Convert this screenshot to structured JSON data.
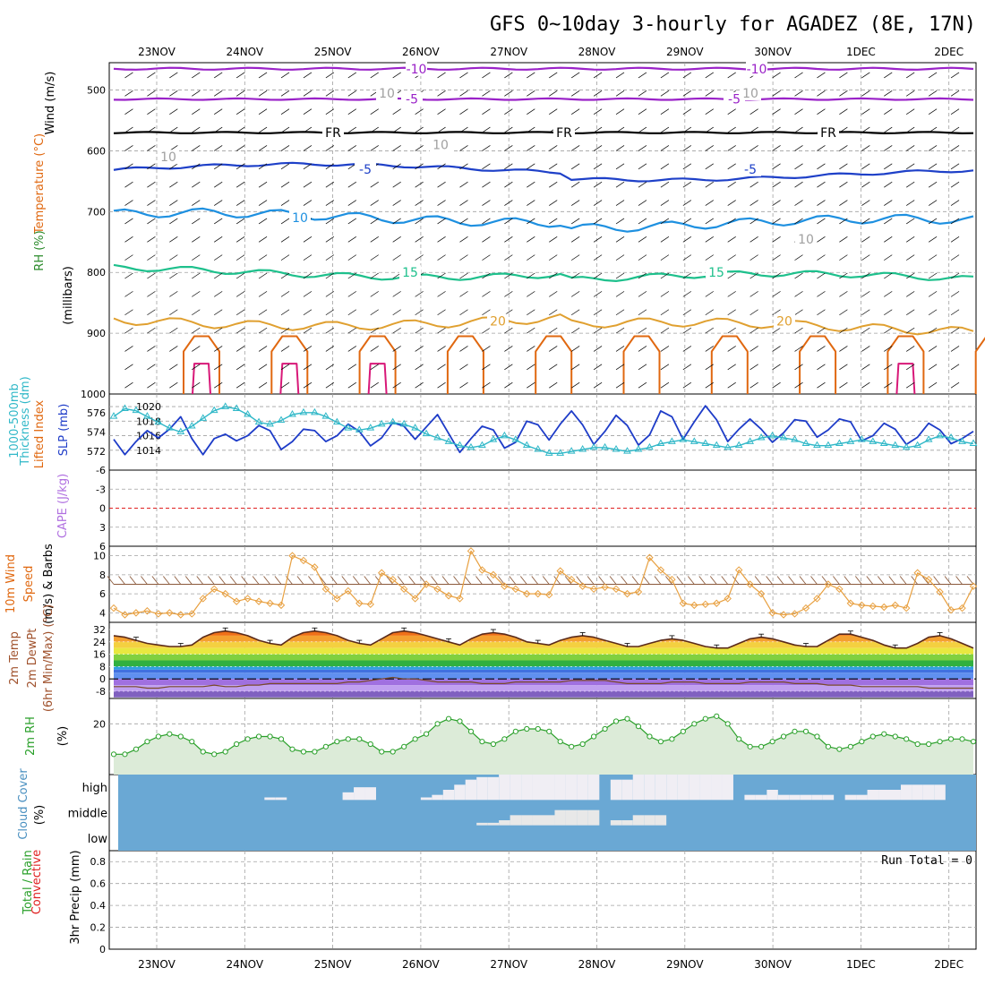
{
  "title": "GFS 0~10day 3-hourly for AGADEZ (8E, 17N)",
  "dates": [
    "23NOV",
    "24NOV",
    "25NOV",
    "26NOV",
    "27NOV",
    "28NOV",
    "29NOV",
    "30NOV",
    "1DEC",
    "2DEC"
  ],
  "colors": {
    "grid": "#a0a0a0",
    "purple": "#9a22c8",
    "black": "#000000",
    "blue": "#1e40c8",
    "lightblue": "#1e90e0",
    "teal": "#1ec08c",
    "gold": "#e0a030",
    "orange": "#e06810",
    "magenta": "#d81878",
    "slp": "#1e3cc8",
    "thk": "#30b8c8",
    "wind": "#e8a040",
    "barb": "#8b5a3c",
    "rh": "#2aa02a",
    "rhfill": "#dcebd8",
    "cloud": "#6aa8d4",
    "cloudwhite": "#f0eef4",
    "redline": "#e02020"
  },
  "panels": {
    "upper": {
      "ylabels": [
        "Wind (m/s)",
        "Temperature (°C)",
        "RH (%)",
        "(millibars)"
      ],
      "yticks": [
        "500",
        "600",
        "700",
        "800",
        "900",
        "1000"
      ],
      "contour_labels": [
        {
          "text": "-10",
          "color": "purple"
        },
        {
          "text": "-10",
          "color": "purple"
        },
        {
          "text": "-5",
          "color": "purple"
        },
        {
          "text": "-5",
          "color": "purple"
        },
        {
          "text": "FR",
          "color": "black"
        },
        {
          "text": "FR",
          "color": "black"
        },
        {
          "text": "FR",
          "color": "black"
        },
        {
          "text": "-5",
          "color": "blue"
        },
        {
          "text": "-5",
          "color": "blue"
        },
        {
          "text": "10",
          "color": "lightblue"
        },
        {
          "text": "15",
          "color": "teal"
        },
        {
          "text": "15",
          "color": "teal"
        },
        {
          "text": "20",
          "color": "gold"
        },
        {
          "text": "20",
          "color": "gold"
        },
        {
          "text": "10",
          "color": "grid"
        },
        {
          "text": "10",
          "color": "grid"
        },
        {
          "text": "10",
          "color": "grid"
        },
        {
          "text": "10",
          "color": "grid"
        },
        {
          "text": "10",
          "color": "grid"
        }
      ]
    },
    "thickness": {
      "ylabels": [
        "1000-500mb",
        "Thickness (dm)",
        "SLP (mb)"
      ],
      "left_ticks": [
        "576",
        "574",
        "572"
      ],
      "right_ticks": [
        "1020",
        "1018",
        "1016",
        "1014"
      ]
    },
    "li": {
      "ylabels": [
        "Lifted Index",
        "CAPE (J/kg)"
      ],
      "ticks": [
        "-6",
        "-3",
        "0",
        "3",
        "6"
      ]
    },
    "wind10": {
      "ylabels": [
        "10m Wind",
        "Speed",
        "(m/s) & Barbs"
      ],
      "ticks": [
        "10",
        "8",
        "6",
        "4"
      ]
    },
    "temp": {
      "ylabels": [
        "2m Temp",
        "2m DewPt",
        "(6hr Min/Max) (°C)"
      ],
      "ticks": [
        "32",
        "24",
        "16",
        "8",
        "0",
        "-8"
      ]
    },
    "rh": {
      "ylabels": [
        "2m RH",
        "(%)"
      ],
      "ticks": [
        "20"
      ]
    },
    "cloud": {
      "ylabels": [
        "Cloud Cover",
        "(%)"
      ],
      "levels": [
        "high",
        "middle",
        "low"
      ]
    },
    "precip": {
      "ylabels": [
        "Total / Rain",
        "Convective",
        "3hr Precip (mm)"
      ],
      "ticks": [
        "0.8",
        "0.6",
        "0.4",
        "0.2",
        "0"
      ],
      "run_total": "Run Total = 0"
    }
  },
  "chart_data": [
    {
      "type": "line",
      "title": "SLP (mb) / 1000-500mb Thickness (dm)",
      "x_unit": "3-hourly steps from 22NOV 12Z",
      "series": [
        {
          "name": "SLP (mb)",
          "values": [
            1015.5,
            1013.4,
            1015.2,
            1016.7,
            1015.7,
            1016.9,
            1018.6,
            1015.6,
            1013.4,
            1015.6,
            1016.2,
            1015.3,
            1016.0,
            1017.4,
            1016.7,
            1014.1,
            1015.2,
            1016.9,
            1016.7,
            1015.2,
            1016.0,
            1017.6,
            1016.6,
            1014.6,
            1015.7,
            1017.8,
            1017.3,
            1015.5,
            1017.2,
            1018.9,
            1016.3,
            1013.7,
            1015.6,
            1017.3,
            1016.8,
            1014.3,
            1015.1,
            1018.0,
            1017.5,
            1015.4,
            1017.6,
            1019.4,
            1017.5,
            1014.8,
            1016.6,
            1018.8,
            1017.4,
            1014.7,
            1016.1,
            1019.4,
            1018.6,
            1015.5,
            1017.9,
            1020.1,
            1018.2,
            1015.2,
            1016.9,
            1018.3,
            1016.9,
            1015.1,
            1016.4,
            1018.2,
            1018.0,
            1015.8,
            1016.8,
            1018.3,
            1017.9,
            1015.3,
            1016.0,
            1017.7,
            1016.9,
            1014.8,
            1015.8,
            1017.7,
            1016.8,
            1014.9,
            1015.6,
            1016.6
          ]
        },
        {
          "name": "1000-500mb Thickness (dm)",
          "values": [
            575.6,
            576.4,
            576.2,
            575.6,
            575.0,
            574.4,
            574.0,
            574.6,
            575.4,
            576.2,
            576.6,
            576.4,
            575.8,
            575.0,
            574.8,
            575.2,
            575.8,
            576.0,
            576.0,
            575.6,
            575.0,
            574.4,
            574.2,
            574.4,
            574.8,
            575.0,
            574.8,
            574.4,
            573.8,
            573.4,
            573.0,
            572.6,
            572.4,
            572.6,
            573.2,
            573.6,
            573.2,
            572.6,
            572.2,
            571.8,
            571.8,
            572.0,
            572.2,
            572.4,
            572.4,
            572.2,
            572.0,
            572.2,
            572.4,
            572.8,
            573.0,
            573.2,
            573.0,
            572.8,
            572.6,
            572.4,
            572.6,
            573.0,
            573.4,
            573.6,
            573.4,
            573.2,
            572.8,
            572.6,
            572.6,
            572.8,
            573.0,
            573.2,
            573.0,
            572.8,
            572.6,
            572.4,
            572.6,
            573.2,
            573.6,
            573.4,
            573.0,
            572.8
          ]
        }
      ],
      "y_left": {
        "label": "1000-500mb Thickness (dm)",
        "ticks": [
          572,
          574,
          576
        ]
      },
      "y_right": {
        "label": "SLP (mb)",
        "ticks": [
          1014,
          1016,
          1018,
          1020
        ]
      }
    },
    {
      "type": "line",
      "title": "10m Wind Speed (m/s) & Barbs",
      "series": [
        {
          "name": "10m Wind Speed",
          "values": [
            4.5,
            3.8,
            4.0,
            4.2,
            3.9,
            4.0,
            3.8,
            3.9,
            5.5,
            6.5,
            6.0,
            5.2,
            5.5,
            5.2,
            5.0,
            4.8,
            10.0,
            9.5,
            8.8,
            6.5,
            5.5,
            6.3,
            5.0,
            4.9,
            8.2,
            7.5,
            6.5,
            5.5,
            7.0,
            6.5,
            5.8,
            5.5,
            10.5,
            8.5,
            8.0,
            6.8,
            6.5,
            6.0,
            6.0,
            5.9,
            8.4,
            7.5,
            6.8,
            6.5,
            6.7,
            6.5,
            6.0,
            6.2,
            9.8,
            8.5,
            7.5,
            5.0,
            4.8,
            4.9,
            5.0,
            5.5,
            8.5,
            7.0,
            6.0,
            4.0,
            3.8,
            3.9,
            4.5,
            5.5,
            7.0,
            6.5,
            5.0,
            4.8,
            4.7,
            4.6,
            4.8,
            4.5,
            8.2,
            7.5,
            6.2,
            4.3,
            4.5,
            6.8
          ]
        },
        {
          "name": "Barbs (direction)",
          "values": [
            70,
            70,
            70,
            70,
            70,
            70,
            70,
            70,
            60,
            60,
            60,
            60,
            60,
            60,
            60,
            60,
            60,
            60,
            60,
            60,
            60,
            60,
            60,
            60,
            60,
            60,
            60,
            60,
            60,
            60,
            60,
            60,
            60,
            60,
            60,
            60,
            60,
            60,
            60,
            60,
            60,
            60,
            60,
            60,
            60,
            60,
            60,
            60,
            60,
            60,
            60,
            60,
            60,
            60,
            60,
            60,
            60,
            60,
            60,
            60,
            60,
            60,
            60,
            60,
            60,
            60,
            60,
            60,
            60,
            60,
            60,
            60,
            60,
            60,
            60,
            60,
            60,
            60
          ]
        }
      ],
      "ylim": [
        3,
        11
      ]
    },
    {
      "type": "area",
      "title": "2m Temp / 2m DewPt (°C)",
      "series": [
        {
          "name": "2m Temp",
          "values": [
            28,
            27,
            25,
            23,
            22,
            21,
            21,
            22,
            27,
            30,
            31,
            30,
            28,
            25,
            23,
            22,
            27,
            30,
            31,
            30,
            28,
            25,
            23,
            22,
            26,
            30,
            31,
            30,
            28,
            26,
            24,
            22,
            26,
            29,
            30,
            29,
            27,
            24,
            23,
            22,
            25,
            27,
            28,
            27,
            25,
            23,
            21,
            21,
            23,
            25,
            26,
            25,
            23,
            21,
            20,
            20,
            23,
            26,
            27,
            26,
            24,
            22,
            21,
            21,
            25,
            29,
            29,
            27,
            25,
            22,
            20,
            20,
            23,
            27,
            28,
            26,
            23,
            20
          ]
        },
        {
          "name": "2m DewPt",
          "values": [
            -5,
            -5,
            -5,
            -6,
            -6,
            -5,
            -5,
            -5,
            -5,
            -4,
            -5,
            -5,
            -4,
            -4,
            -3,
            -3,
            -3,
            -3,
            -3,
            -3,
            -3,
            -2,
            -2,
            -1,
            0,
            1,
            0,
            0,
            -1,
            -2,
            -2,
            -2,
            -2,
            -3,
            -3,
            -3,
            -2,
            -2,
            -2,
            -2,
            -2,
            -1,
            -1,
            -1,
            -1,
            -2,
            -3,
            -3,
            -3,
            -3,
            -2,
            -2,
            -2,
            -3,
            -3,
            -3,
            -3,
            -2,
            -2,
            -2,
            -2,
            -3,
            -3,
            -3,
            -4,
            -4,
            -4,
            -5,
            -5,
            -5,
            -5,
            -5,
            -5,
            -6,
            -6,
            -6,
            -6,
            -6
          ]
        }
      ],
      "ylim": [
        -12,
        34
      ]
    },
    {
      "type": "area",
      "title": "2m RH (%)",
      "series": [
        {
          "name": "2m RH",
          "values": [
            8,
            8,
            10,
            13,
            15,
            16,
            15,
            13,
            9,
            8,
            9,
            12,
            14,
            15,
            15,
            14,
            10,
            9,
            9,
            11,
            13,
            14,
            14,
            12,
            9,
            9,
            11,
            14,
            16,
            20,
            22,
            21,
            17,
            13,
            12,
            14,
            17,
            18,
            18,
            17,
            13,
            11,
            12,
            15,
            18,
            21,
            22,
            19,
            15,
            13,
            14,
            17,
            20,
            22,
            23,
            20,
            14,
            11,
            11,
            13,
            15,
            17,
            17,
            15,
            11,
            10,
            11,
            13,
            15,
            16,
            15,
            14,
            12,
            12,
            13,
            14,
            14,
            13
          ]
        }
      ],
      "ylim": [
        0,
        30
      ]
    },
    {
      "type": "heatmap",
      "title": "Cloud Cover (%)",
      "series": [
        {
          "name": "high",
          "values": [
            100,
            100,
            100,
            100,
            100,
            100,
            100,
            100,
            100,
            100,
            100,
            100,
            100,
            100,
            90,
            90,
            100,
            100,
            100,
            100,
            100,
            70,
            50,
            50,
            100,
            100,
            100,
            100,
            90,
            80,
            60,
            40,
            20,
            10,
            10,
            0,
            0,
            0,
            0,
            0,
            0,
            0,
            0,
            0,
            100,
            20,
            20,
            0,
            0,
            0,
            0,
            0,
            0,
            0,
            0,
            0,
            100,
            80,
            80,
            60,
            80,
            80,
            80,
            80,
            80,
            100,
            80,
            80,
            60,
            60,
            60,
            40,
            40,
            40,
            40,
            100,
            100,
            100
          ]
        },
        {
          "name": "middle",
          "values": [
            100,
            100,
            100,
            100,
            100,
            100,
            100,
            100,
            100,
            100,
            100,
            100,
            100,
            100,
            100,
            100,
            100,
            100,
            100,
            100,
            100,
            100,
            100,
            100,
            100,
            100,
            100,
            100,
            100,
            100,
            100,
            100,
            100,
            90,
            90,
            80,
            60,
            60,
            60,
            60,
            40,
            40,
            40,
            40,
            100,
            80,
            80,
            60,
            60,
            60,
            100,
            100,
            100,
            100,
            100,
            100,
            100,
            100,
            100,
            100,
            100,
            100,
            100,
            100,
            100,
            100,
            100,
            100,
            100,
            100,
            100,
            100,
            100,
            100,
            100,
            100,
            100,
            100
          ]
        },
        {
          "name": "low",
          "values": [
            100,
            100,
            100,
            100,
            100,
            100,
            100,
            100,
            100,
            100,
            100,
            100,
            100,
            100,
            100,
            100,
            100,
            100,
            100,
            100,
            100,
            100,
            100,
            100,
            100,
            100,
            100,
            100,
            100,
            100,
            100,
            100,
            100,
            100,
            100,
            100,
            100,
            100,
            100,
            100,
            100,
            100,
            100,
            100,
            100,
            100,
            100,
            100,
            100,
            100,
            100,
            100,
            100,
            100,
            100,
            100,
            100,
            100,
            100,
            100,
            100,
            100,
            100,
            100,
            100,
            100,
            100,
            100,
            100,
            100,
            100,
            100,
            100,
            100,
            100,
            100,
            100,
            100
          ]
        }
      ]
    },
    {
      "type": "bar",
      "title": "3hr Precip (mm)",
      "series": [
        {
          "name": "Total / Rain",
          "values": [
            0
          ]
        },
        {
          "name": "Convective",
          "values": [
            0
          ]
        }
      ],
      "ylim": [
        0,
        0.9
      ]
    }
  ]
}
